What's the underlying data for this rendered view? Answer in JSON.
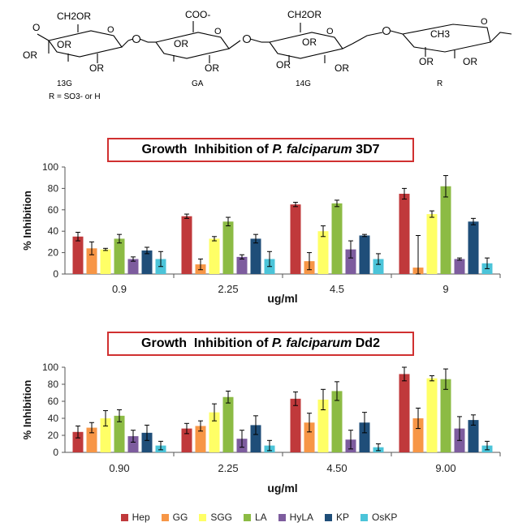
{
  "structure": {
    "units": [
      {
        "label": "13G",
        "substituent": "CH2OR"
      },
      {
        "label": "GA",
        "substituent": "COO-"
      },
      {
        "label": "14G",
        "substituent": "CH2OR"
      },
      {
        "label": "R",
        "substituent": "CH3"
      }
    ],
    "or_text": "OR",
    "r_definition": "R = SO3- or H"
  },
  "colors": {
    "Hep": "#c0393b",
    "GG": "#f79646",
    "SGG": "#ffff66",
    "LA": "#8cbb44",
    "HyLA": "#7d5c9e",
    "KP": "#1f4e79",
    "OsKP": "#4bc4d9"
  },
  "legend": {
    "items": [
      {
        "name": "Hep",
        "color": "#c0393b"
      },
      {
        "name": "GG",
        "color": "#f79646"
      },
      {
        "name": "SGG",
        "color": "#ffff66"
      },
      {
        "name": "LA",
        "color": "#8cbb44"
      },
      {
        "name": "HyLA",
        "color": "#7d5c9e"
      },
      {
        "name": "KP",
        "color": "#1f4e79"
      },
      {
        "name": "OsKP",
        "color": "#4bc4d9"
      }
    ]
  },
  "charts": [
    {
      "title_prefix": "Growth  Inhibition of ",
      "title_italic": "P. falciparum",
      "title_suffix": " 3D7"
    },
    {
      "title_prefix": "Growth  Inhibition of ",
      "title_italic": "P. falciparum",
      "title_suffix": " Dd2"
    }
  ],
  "chart_data": [
    {
      "type": "bar",
      "title": "Growth  Inhibition of P. falciparum 3D7",
      "xlabel": "ug/ml",
      "ylabel": "% Inhibition",
      "ylim": [
        0,
        100
      ],
      "yticks": [
        0,
        20,
        40,
        60,
        80,
        100
      ],
      "categories": [
        "0.9",
        "2.25",
        "4.5",
        "9"
      ],
      "grid": false,
      "series": [
        {
          "name": "Hep",
          "values": [
            35,
            54,
            65,
            75
          ],
          "errors": [
            4,
            2,
            2,
            5
          ]
        },
        {
          "name": "GG",
          "values": [
            24,
            9,
            12,
            6
          ],
          "errors": [
            6,
            5,
            8,
            30
          ]
        },
        {
          "name": "SGG",
          "values": [
            23,
            33,
            40,
            56
          ],
          "errors": [
            1,
            2,
            5,
            3
          ]
        },
        {
          "name": "LA",
          "values": [
            33,
            49,
            66,
            82
          ],
          "errors": [
            4,
            4,
            3,
            10
          ]
        },
        {
          "name": "HyLA",
          "values": [
            14,
            16,
            23,
            14
          ],
          "errors": [
            2,
            2,
            8,
            1
          ]
        },
        {
          "name": "KP",
          "values": [
            22,
            33,
            36,
            49
          ],
          "errors": [
            3,
            4,
            1,
            3
          ]
        },
        {
          "name": "OsKP",
          "values": [
            14,
            14,
            14,
            10
          ],
          "errors": [
            7,
            7,
            5,
            5
          ]
        }
      ]
    },
    {
      "type": "bar",
      "title": "Growth  Inhibition of P. falciparum Dd2",
      "xlabel": "ug/ml",
      "ylabel": "% Inhibition",
      "ylim": [
        0,
        100
      ],
      "yticks": [
        0,
        20,
        40,
        60,
        80,
        100
      ],
      "categories": [
        "0.90",
        "2.25",
        "4.50",
        "9.00"
      ],
      "grid": false,
      "series": [
        {
          "name": "Hep",
          "values": [
            24,
            28,
            63,
            92
          ],
          "errors": [
            7,
            6,
            8,
            8
          ]
        },
        {
          "name": "GG",
          "values": [
            29,
            31,
            35,
            40
          ],
          "errors": [
            6,
            6,
            11,
            12
          ]
        },
        {
          "name": "SGG",
          "values": [
            40,
            47,
            62,
            87
          ],
          "errors": [
            9,
            10,
            12,
            3
          ]
        },
        {
          "name": "LA",
          "values": [
            43,
            65,
            72,
            86
          ],
          "errors": [
            7,
            7,
            11,
            12
          ]
        },
        {
          "name": "HyLA",
          "values": [
            19,
            16,
            15,
            28
          ],
          "errors": [
            7,
            10,
            11,
            14
          ]
        },
        {
          "name": "KP",
          "values": [
            23,
            32,
            35,
            38
          ],
          "errors": [
            9,
            11,
            12,
            6
          ]
        },
        {
          "name": "OsKP",
          "values": [
            8,
            8,
            6,
            8
          ],
          "errors": [
            5,
            6,
            4,
            5
          ]
        }
      ]
    }
  ]
}
